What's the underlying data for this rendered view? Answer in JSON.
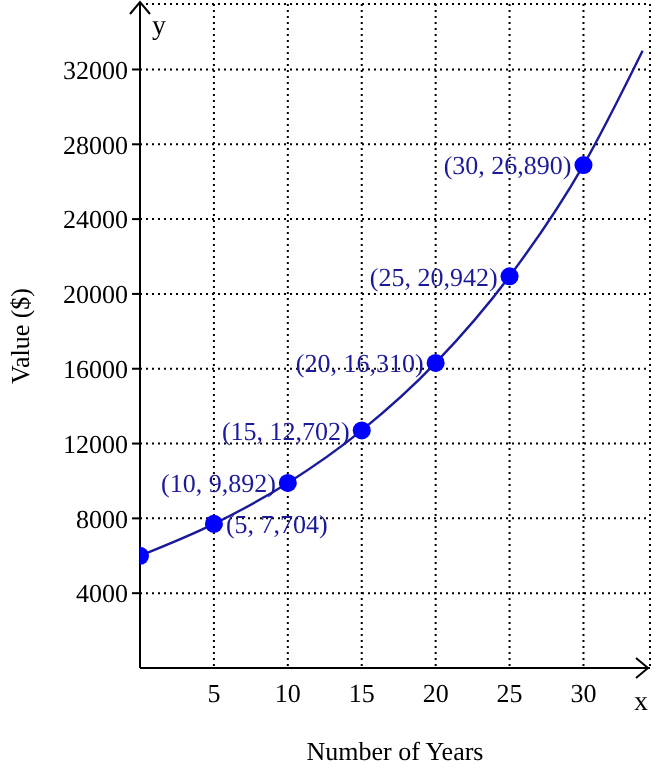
{
  "chart_data": {
    "type": "scatter",
    "xlabel": "Number of Years",
    "ylabel": "Value ($)",
    "x": [
      0,
      5,
      10,
      15,
      20,
      25,
      30
    ],
    "series": [
      {
        "type": "line",
        "color": "#1a1a9a",
        "x": [
          0,
          5,
          10,
          15,
          20,
          25,
          30,
          34
        ],
        "values": [
          6000,
          7704,
          9892,
          12702,
          16310,
          20942,
          26890,
          33000
        ],
        "marker": "none"
      },
      {
        "color": "#0000ff",
        "values": [
          6000,
          7704,
          9892,
          12702,
          16310,
          20942,
          26890
        ],
        "marker": "circle"
      }
    ],
    "xlim": [
      0,
      34.5
    ],
    "xticks": [
      5,
      10,
      15,
      20,
      25,
      30
    ],
    "ylim": [
      0,
      35500
    ],
    "yticks": [
      4000,
      8000,
      12000,
      16000,
      20000,
      24000,
      28000,
      32000
    ],
    "grid": true,
    "annotations": [
      "y",
      "x",
      {
        "text": "(5, 7,704)",
        "x": 5,
        "y": 7704
      },
      {
        "text": "(10, 9,892)",
        "x": 10,
        "y": 9892
      },
      {
        "text": "(15, 12,702)",
        "x": 15,
        "y": 12702
      },
      {
        "text": "(20, 16,310)",
        "x": 20,
        "y": 16310
      },
      {
        "text": "(25, 20,942)",
        "x": 25,
        "y": 20942
      },
      {
        "text": "(30, 26,890)",
        "x": 30,
        "y": 26890
      }
    ]
  }
}
